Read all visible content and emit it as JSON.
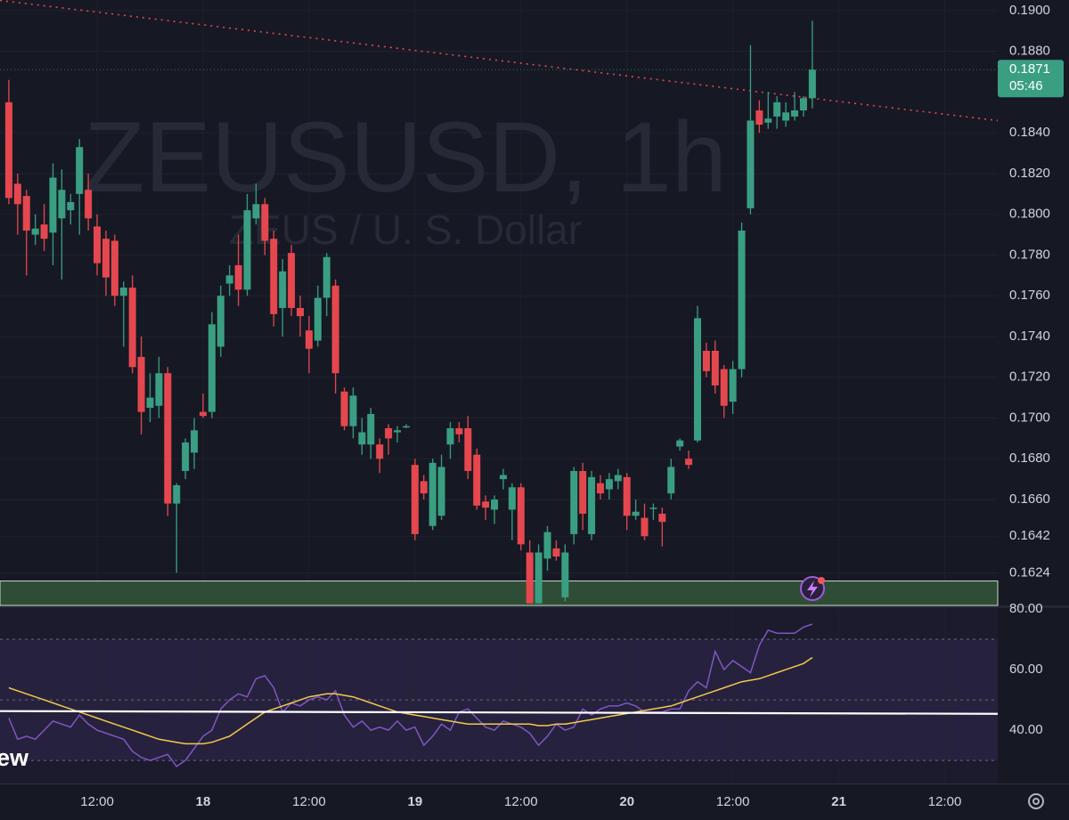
{
  "chart_data": {
    "type": "candlestick",
    "title": "ZEUSUSD, 1h",
    "subtitle": "ZEUS / U. S. Dollar",
    "logo_text": "ew",
    "up_color": "#3a9e83",
    "down_color": "#e5474f",
    "xlim": [
      -23,
      90
    ],
    "xticks": [
      {
        "value": -12,
        "label": "12:00"
      },
      {
        "value": 0,
        "label": "18"
      },
      {
        "value": 12,
        "label": "12:00"
      },
      {
        "value": 24,
        "label": "19"
      },
      {
        "value": 36,
        "label": "12:00"
      },
      {
        "value": 48,
        "label": "20"
      },
      {
        "value": 60,
        "label": "12:00"
      },
      {
        "value": 72,
        "label": "21"
      },
      {
        "value": 84,
        "label": "12:00"
      }
    ],
    "ylim": [
      0.1608,
      0.19052
    ],
    "yticks": [
      {
        "value": 0.19,
        "label": "0.1900"
      },
      {
        "value": 0.188,
        "label": "0.1880"
      },
      {
        "value": 0.184,
        "label": "0.1840"
      },
      {
        "value": 0.182,
        "label": "0.1820"
      },
      {
        "value": 0.18,
        "label": "0.1800"
      },
      {
        "value": 0.178,
        "label": "0.1780"
      },
      {
        "value": 0.176,
        "label": "0.1760"
      },
      {
        "value": 0.174,
        "label": "0.1740"
      },
      {
        "value": 0.172,
        "label": "0.1720"
      },
      {
        "value": 0.17,
        "label": "0.1700"
      },
      {
        "value": 0.168,
        "label": "0.1680"
      },
      {
        "value": 0.166,
        "label": "0.1660"
      },
      0.1642,
      0.1624
    ],
    "grid": true,
    "last_price": 0.1871,
    "countdown": "05:46",
    "last_price_color": "#3a9e83",
    "zone": [
      0.1608,
      0.162
    ],
    "zone_color": "#2f4d36",
    "trendline": {
      "x": [
        -23,
        90
      ],
      "values": [
        0.1905,
        0.1846
      ],
      "color": "#e5474f"
    },
    "x": [
      -22,
      -21,
      -20,
      -19,
      -18,
      -17,
      -16,
      -15,
      -14,
      -13,
      -12,
      -11,
      -10,
      -9,
      -8,
      -7,
      -6,
      -5,
      -4,
      -3,
      -2,
      -1,
      0,
      1,
      2,
      3,
      4,
      5,
      6,
      7,
      8,
      9,
      10,
      11,
      12,
      13,
      14,
      15,
      16,
      17,
      18,
      19,
      20,
      21,
      22,
      23,
      24,
      25,
      26,
      27,
      28,
      29,
      30,
      31,
      32,
      33,
      34,
      35,
      36,
      37,
      38,
      39,
      40,
      41,
      42,
      43,
      44,
      45,
      46,
      47,
      48,
      49,
      50,
      51,
      52,
      53,
      54,
      55,
      56,
      57,
      58,
      59,
      60,
      61,
      62,
      63,
      64,
      65,
      66,
      67,
      68,
      69
    ],
    "open": [
      0.1855,
      0.1815,
      0.1809,
      0.179,
      0.1795,
      0.1791,
      0.1798,
      0.1802,
      0.181,
      0.1812,
      0.1794,
      0.1788,
      0.1787,
      0.176,
      0.1764,
      0.173,
      0.1705,
      0.1706,
      0.1722,
      0.1658,
      0.1674,
      0.1683,
      0.1703,
      0.1703,
      0.1735,
      0.1766,
      0.1775,
      0.1763,
      0.1798,
      0.1805,
      0.1788,
      0.1754,
      0.1781,
      0.1754,
      0.1743,
      0.1738,
      0.1759,
      0.1765,
      0.1713,
      0.1696,
      0.1687,
      0.1687,
      0.1687,
      0.1695,
      0.1693,
      0.1696,
      0.1677,
      0.1669,
      0.1647,
      0.1652,
      0.1687,
      0.1695,
      0.1695,
      0.1682,
      0.1659,
      0.1655,
      0.167,
      0.1655,
      0.1666,
      0.1634,
      0.1609,
      0.1631,
      0.1636,
      0.1612,
      0.1643,
      0.1674,
      0.1643,
      0.1668,
      0.1665,
      0.1669,
      0.1671,
      0.1652,
      0.1651,
      0.1656,
      0.1653,
      0.1663,
      0.1686,
      0.168,
      0.1689,
      0.1733,
      0.1733,
      0.1724,
      0.1708,
      0.1724,
      0.1803,
      0.1851,
      0.1845,
      0.1848,
      0.1846,
      0.1848,
      0.1851,
      0.1857
    ],
    "high": [
      0.1866,
      0.182,
      0.1812,
      0.18,
      0.1805,
      0.1825,
      0.1822,
      0.181,
      0.1837,
      0.182,
      0.18,
      0.1792,
      0.179,
      0.1767,
      0.177,
      0.174,
      0.1722,
      0.173,
      0.1725,
      0.1668,
      0.169,
      0.17,
      0.1712,
      0.1752,
      0.1765,
      0.1775,
      0.179,
      0.181,
      0.1815,
      0.1808,
      0.1792,
      0.1778,
      0.1785,
      0.176,
      0.175,
      0.1765,
      0.1781,
      0.1768,
      0.1715,
      0.1715,
      0.17,
      0.1705,
      0.169,
      0.1697,
      0.1696,
      0.1697,
      0.168,
      0.1672,
      0.168,
      0.1682,
      0.1698,
      0.1698,
      0.1701,
      0.1685,
      0.1662,
      0.1662,
      0.1675,
      0.1668,
      0.1668,
      0.164,
      0.1638,
      0.1647,
      0.164,
      0.1638,
      0.1676,
      0.1678,
      0.1674,
      0.1672,
      0.1673,
      0.1675,
      0.1673,
      0.166,
      0.1658,
      0.1658,
      0.1656,
      0.168,
      0.169,
      0.1684,
      0.1755,
      0.1737,
      0.1738,
      0.1726,
      0.1728,
      0.1796,
      0.1883,
      0.1856,
      0.186,
      0.1858,
      0.1855,
      0.186,
      0.1858,
      0.1895
    ],
    "low": [
      0.1805,
      0.179,
      0.177,
      0.1785,
      0.1782,
      0.1775,
      0.1768,
      0.1795,
      0.179,
      0.1792,
      0.177,
      0.176,
      0.1755,
      0.1735,
      0.1722,
      0.1692,
      0.1698,
      0.17,
      0.1652,
      0.1624,
      0.167,
      0.1675,
      0.17,
      0.17,
      0.173,
      0.176,
      0.1755,
      0.176,
      0.1795,
      0.178,
      0.1745,
      0.174,
      0.175,
      0.174,
      0.1722,
      0.1735,
      0.175,
      0.1712,
      0.1694,
      0.169,
      0.1682,
      0.168,
      0.1673,
      0.1682,
      0.1688,
      0.1695,
      0.164,
      0.166,
      0.1645,
      0.165,
      0.168,
      0.1688,
      0.167,
      0.1655,
      0.165,
      0.1648,
      0.1665,
      0.164,
      0.1635,
      0.1609,
      0.1609,
      0.1625,
      0.163,
      0.161,
      0.1638,
      0.1645,
      0.164,
      0.166,
      0.166,
      0.1665,
      0.1645,
      0.165,
      0.164,
      0.165,
      0.1637,
      0.166,
      0.1684,
      0.1675,
      0.1688,
      0.172,
      0.1712,
      0.17,
      0.1702,
      0.172,
      0.18,
      0.184,
      0.1842,
      0.1842,
      0.1843,
      0.1846,
      0.1848,
      0.1852
    ],
    "close": [
      0.1808,
      0.1805,
      0.1792,
      0.1793,
      0.1788,
      0.1818,
      0.1812,
      0.1806,
      0.1833,
      0.1798,
      0.1776,
      0.1769,
      0.176,
      0.1764,
      0.1725,
      0.1703,
      0.171,
      0.1722,
      0.1658,
      0.1667,
      0.1688,
      0.1694,
      0.1701,
      0.1746,
      0.176,
      0.177,
      0.1763,
      0.1802,
      0.1805,
      0.1787,
      0.1751,
      0.1772,
      0.1754,
      0.175,
      0.1734,
      0.1759,
      0.1779,
      0.1722,
      0.1696,
      0.1711,
      0.1693,
      0.1702,
      0.168,
      0.169,
      0.1694,
      0.1696,
      0.1643,
      0.1663,
      0.1678,
      0.1676,
      0.1695,
      0.1692,
      0.1674,
      0.1657,
      0.1656,
      0.166,
      0.1672,
      0.1666,
      0.1638,
      0.1609,
      0.1634,
      0.1644,
      0.1632,
      0.1634,
      0.1674,
      0.1653,
      0.1671,
      0.1663,
      0.167,
      0.1672,
      0.1652,
      0.1654,
      0.1642,
      0.1656,
      0.1649,
      0.1676,
      0.1689,
      0.1677,
      0.1749,
      0.1723,
      0.1716,
      0.1706,
      0.1724,
      0.1792,
      0.1846,
      0.1844,
      0.1847,
      0.1855,
      0.185,
      0.1851,
      0.1857,
      0.1871
    ],
    "rsi": {
      "ylim": [
        22.4,
        80.3
      ],
      "yticks": [
        {
          "value": 80,
          "label": "80.00"
        },
        {
          "value": 60,
          "label": "60.00"
        },
        {
          "value": 40,
          "label": "40.00"
        }
      ],
      "bands": [
        70,
        50,
        30
      ],
      "band_color": "#7e57c2",
      "series": [
        {
          "color": "#7e57c2",
          "values": [
            44,
            37,
            38,
            37,
            40,
            43,
            42,
            41,
            45,
            42,
            40,
            39,
            38,
            37,
            33,
            31,
            30,
            31,
            32,
            28,
            30,
            34,
            38,
            40,
            47,
            50,
            52,
            51,
            57,
            58,
            54,
            46,
            49,
            48,
            50,
            51,
            50,
            53,
            45,
            41,
            43,
            40,
            41,
            40,
            43,
            40,
            41,
            35,
            38,
            42,
            40,
            46,
            47,
            44,
            41,
            40,
            43,
            42,
            41,
            39,
            35,
            38,
            42,
            40,
            41,
            47,
            45,
            47,
            48,
            48,
            49,
            48,
            46,
            46,
            46,
            47,
            47,
            53,
            56,
            54,
            66,
            60,
            63,
            61,
            59,
            68,
            73,
            72,
            72,
            72,
            74,
            75
          ]
        },
        {
          "color": "#f2c94c",
          "values": [
            54,
            53,
            52,
            51,
            50,
            49,
            48,
            47,
            46,
            45,
            44,
            43,
            42,
            41,
            40,
            39,
            38,
            37,
            36.5,
            36,
            35.5,
            35.5,
            35.5,
            36,
            37,
            38,
            40,
            42,
            44,
            46,
            47,
            48,
            49,
            50,
            51,
            51.5,
            52,
            52,
            51.5,
            51,
            50,
            49,
            48,
            47,
            46,
            45.5,
            45,
            44.5,
            44,
            43.5,
            43,
            42.5,
            42,
            42,
            42,
            42,
            42,
            42,
            42,
            42,
            41.5,
            41.5,
            42,
            42,
            42.5,
            43,
            43.5,
            44,
            44.5,
            45,
            45.5,
            46,
            46.5,
            47,
            47.5,
            48,
            49,
            50,
            51,
            52,
            53,
            54,
            55,
            56,
            56.5,
            57,
            58,
            59,
            60,
            61,
            62,
            64
          ]
        }
      ],
      "trendline": {
        "x": [
          -23,
          90
        ],
        "values": [
          46.3,
          45.4
        ],
        "color": "#ffffff"
      }
    }
  }
}
